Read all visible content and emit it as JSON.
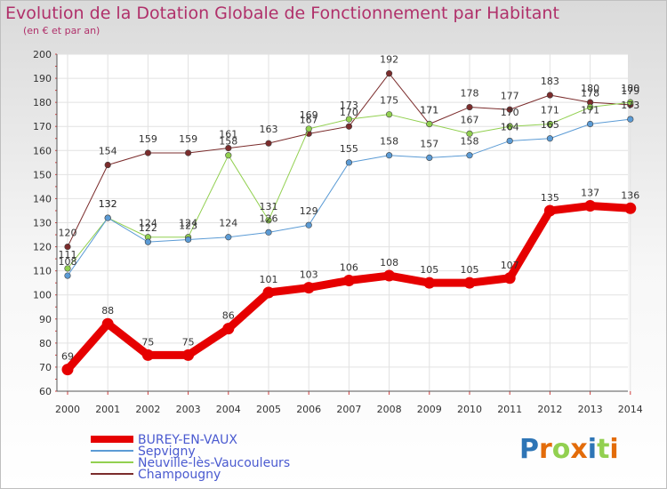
{
  "title": "Evolution de la Dotation Globale de Fonctionnement par Habitant",
  "subtitle": "(en € et par an)",
  "logo": "Proxiti",
  "chart_data": {
    "type": "line",
    "x": [
      2000,
      2001,
      2002,
      2003,
      2004,
      2005,
      2006,
      2007,
      2008,
      2009,
      2010,
      2011,
      2012,
      2013,
      2014
    ],
    "ylim": [
      60,
      200
    ],
    "yticks": [
      60,
      70,
      80,
      90,
      100,
      110,
      120,
      130,
      140,
      150,
      160,
      170,
      180,
      190,
      200
    ],
    "grid": true,
    "legend_position": "bottom-left",
    "series": [
      {
        "name": "BUREY-EN-VAUX",
        "color": "#e60000",
        "width": 9,
        "values": [
          69,
          88,
          75,
          75,
          86,
          101,
          103,
          106,
          108,
          105,
          105,
          107,
          135,
          137,
          136
        ],
        "labels": [
          "69",
          "88",
          "75",
          "75",
          "86",
          "101",
          "103",
          "106",
          "108",
          "105",
          "105",
          "107",
          "135",
          "137",
          "136"
        ]
      },
      {
        "name": "Sepvigny",
        "color": "#5b9bd5",
        "width": 1,
        "values": [
          108,
          132,
          122,
          123,
          124,
          126,
          129,
          155,
          158,
          157,
          158,
          164,
          165,
          171,
          173
        ],
        "labels": [
          "108",
          "132",
          "122",
          "123",
          "124",
          "126",
          "129",
          "155",
          "158",
          "157",
          "158",
          "164",
          "165",
          "171",
          "173"
        ]
      },
      {
        "name": "Neuville-lès-Vaucouleurs",
        "color": "#92d050",
        "width": 1,
        "values": [
          111,
          132,
          124,
          124,
          158,
          131,
          169,
          173,
          175,
          171,
          167,
          170,
          171,
          178,
          180
        ],
        "labels": [
          "111",
          "132",
          "124",
          "124",
          "158",
          "131",
          "169",
          "173",
          "175",
          "171",
          "167",
          "170",
          "171",
          "178",
          "180"
        ]
      },
      {
        "name": "Champougny",
        "color": "#7b2c2c",
        "width": 1,
        "values": [
          120,
          154,
          159,
          159,
          161,
          163,
          167,
          170,
          192,
          171,
          178,
          177,
          183,
          180,
          179
        ],
        "labels": [
          "120",
          "154",
          "159",
          "159",
          "161",
          "163",
          "167",
          "170",
          "192",
          "171",
          "178",
          "177",
          "183",
          "180",
          "179"
        ]
      }
    ]
  }
}
